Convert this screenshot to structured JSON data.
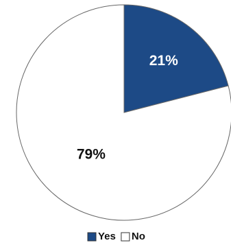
{
  "chart_data": {
    "type": "pie",
    "categories": [
      "Yes",
      "No"
    ],
    "values": [
      21,
      79
    ],
    "value_labels": [
      "21%",
      "79%"
    ],
    "colors": [
      "#1d4a86",
      "#ffffff"
    ],
    "legend": "bottom"
  }
}
